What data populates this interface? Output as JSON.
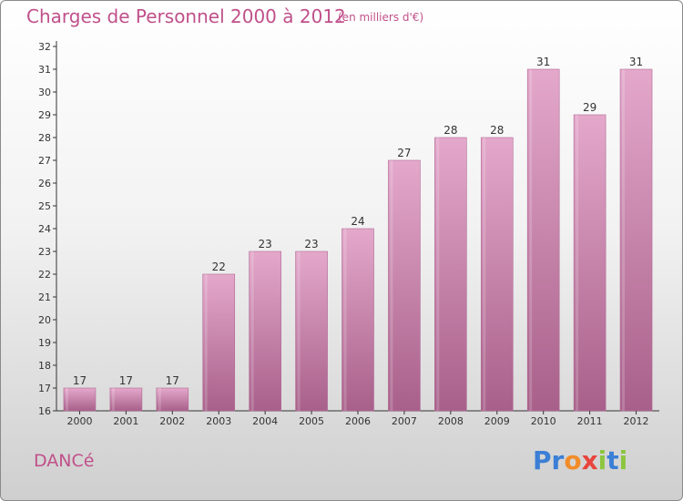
{
  "header": {
    "title": "Charges de Personnel 2000 à 2012",
    "unit_note": "(en milliers d'€)"
  },
  "footer": {
    "commune": "DANCé",
    "logo_letters": [
      {
        "char": "P",
        "color": "#3b7fd6"
      },
      {
        "char": "r",
        "color": "#3b7fd6"
      },
      {
        "char": "o",
        "color": "#f28c28"
      },
      {
        "char": "x",
        "color": "#e8453c"
      },
      {
        "char": "i",
        "color": "#8cc63f"
      },
      {
        "char": "t",
        "color": "#3b7fd6"
      },
      {
        "char": "i",
        "color": "#8cc63f"
      }
    ]
  },
  "colors": {
    "bar": "#cc80ad",
    "bar_light": "#e4a8cb",
    "bar_dark": "#a8608a",
    "title": "#c0508a"
  },
  "chart_data": {
    "type": "bar",
    "title": "Charges de Personnel 2000 à 2012",
    "xlabel": "",
    "ylabel": "",
    "categories": [
      "2000",
      "2001",
      "2002",
      "2003",
      "2004",
      "2005",
      "2006",
      "2007",
      "2008",
      "2009",
      "2010",
      "2011",
      "2012"
    ],
    "values": [
      17,
      17,
      17,
      22,
      23,
      23,
      24,
      27,
      28,
      28,
      31,
      29,
      31
    ],
    "ylim": [
      16,
      32
    ],
    "yticks": [
      16,
      17,
      18,
      19,
      20,
      21,
      22,
      23,
      24,
      25,
      26,
      27,
      28,
      29,
      30,
      31,
      32
    ],
    "grid": false,
    "legend": "none"
  }
}
